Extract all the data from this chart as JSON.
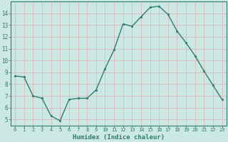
{
  "x": [
    0,
    1,
    2,
    3,
    4,
    5,
    6,
    7,
    8,
    9,
    10,
    11,
    12,
    13,
    14,
    15,
    16,
    17,
    18,
    19,
    20,
    21,
    22,
    23
  ],
  "y": [
    8.7,
    8.6,
    7.0,
    6.8,
    5.3,
    4.9,
    6.7,
    6.8,
    6.8,
    7.5,
    9.3,
    10.9,
    13.1,
    12.9,
    13.7,
    14.5,
    14.6,
    13.9,
    12.5,
    11.5,
    10.4,
    9.1,
    7.9,
    6.7
  ],
  "line_color": "#2e7d6e",
  "marker": "s",
  "marker_size": 2,
  "bg_color": "#cce8e4",
  "grid_color": "#ddb8b8",
  "axis_color": "#2e7d6e",
  "xlabel": "Humidex (Indice chaleur)",
  "ylim": [
    4.5,
    15.0
  ],
  "xlim": [
    -0.5,
    23.5
  ],
  "yticks": [
    5,
    6,
    7,
    8,
    9,
    10,
    11,
    12,
    13,
    14
  ],
  "xticks": [
    0,
    1,
    2,
    3,
    4,
    5,
    6,
    7,
    8,
    9,
    10,
    11,
    12,
    13,
    14,
    15,
    16,
    17,
    18,
    19,
    20,
    21,
    22,
    23
  ],
  "xlabel_fontsize": 6.5,
  "tick_fontsize_x": 5,
  "tick_fontsize_y": 5.5
}
